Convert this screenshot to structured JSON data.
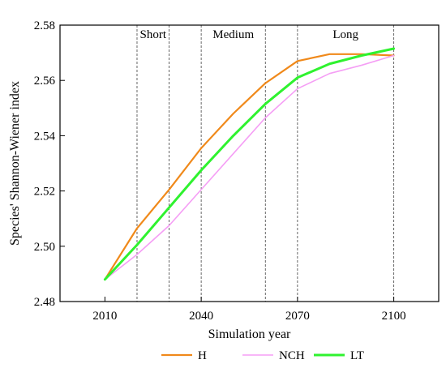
{
  "chart_data": {
    "type": "line",
    "title": "",
    "xlabel": "Simulation year",
    "ylabel": "Species' Shannon-Wiener index",
    "x": [
      2010,
      2020,
      2030,
      2040,
      2050,
      2060,
      2070,
      2080,
      2090,
      2100
    ],
    "xlim": [
      1996,
      2114
    ],
    "ylim": [
      2.48,
      2.58
    ],
    "x_ticks": [
      2010,
      2040,
      2070,
      2100
    ],
    "x_tick_labels": [
      "2010",
      "2040",
      "2070",
      "2100"
    ],
    "y_ticks": [
      2.48,
      2.5,
      2.52,
      2.54,
      2.56,
      2.58
    ],
    "y_tick_labels": [
      "2.48",
      "2.50",
      "2.52",
      "2.54",
      "2.56",
      "2.58"
    ],
    "grid": false,
    "legend_position": "bottom",
    "phase_dividers": [
      2020,
      2030,
      2040,
      2060,
      2070,
      2100
    ],
    "phases": [
      {
        "label": "Short",
        "center": 2025
      },
      {
        "label": "Medium",
        "center": 2050
      },
      {
        "label": "Long",
        "center": 2085
      }
    ],
    "series": [
      {
        "name": "H",
        "color": "#f0891a",
        "width": 2.2,
        "values": [
          2.488,
          2.5065,
          2.5205,
          2.5355,
          2.548,
          2.559,
          2.567,
          2.5695,
          2.5695,
          2.569
        ]
      },
      {
        "name": "NCH",
        "color": "#f59ef5",
        "width": 1.6,
        "values": [
          2.488,
          2.497,
          2.5075,
          2.5205,
          2.5335,
          2.5465,
          2.557,
          2.5625,
          2.5655,
          2.569
        ]
      },
      {
        "name": "LT",
        "color": "#2ff22f",
        "width": 3,
        "values": [
          2.488,
          2.5005,
          2.514,
          2.5275,
          2.54,
          2.5515,
          2.561,
          2.566,
          2.569,
          2.5715
        ]
      }
    ]
  }
}
